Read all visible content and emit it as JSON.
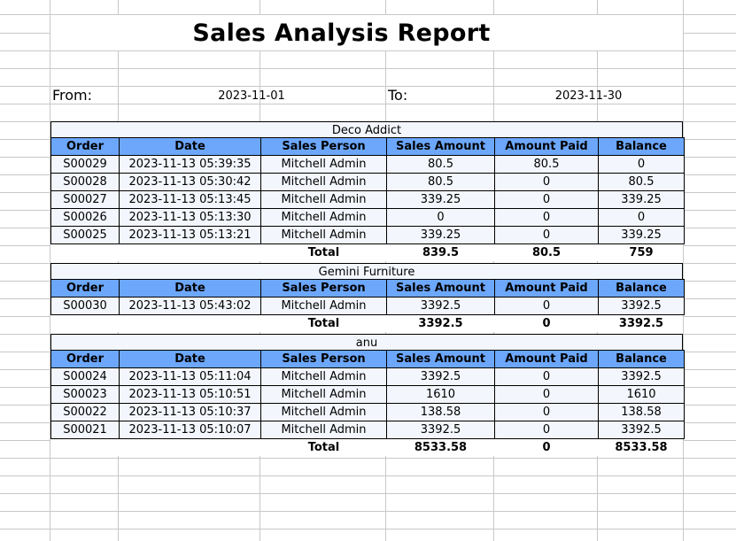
{
  "report": {
    "title": "Sales Analysis Report",
    "from_label": "From:",
    "from_value": "2023-11-01",
    "to_label": "To:",
    "to_value": "2023-11-30"
  },
  "headers": [
    "Order",
    "Date",
    "Sales Person",
    "Sales Amount",
    "Amount Paid",
    "Balance"
  ],
  "total_label": "Total",
  "groups": [
    {
      "name": "Deco Addict",
      "rows": [
        [
          "S00029",
          "2023-11-13 05:39:35",
          "Mitchell Admin",
          "80.5",
          "80.5",
          "0"
        ],
        [
          "S00028",
          "2023-11-13 05:30:42",
          "Mitchell Admin",
          "80.5",
          "0",
          "80.5"
        ],
        [
          "S00027",
          "2023-11-13 05:13:45",
          "Mitchell Admin",
          "339.25",
          "0",
          "339.25"
        ],
        [
          "S00026",
          "2023-11-13 05:13:30",
          "Mitchell Admin",
          "0",
          "0",
          "0"
        ],
        [
          "S00025",
          "2023-11-13 05:13:21",
          "Mitchell Admin",
          "339.25",
          "0",
          "339.25"
        ]
      ],
      "totals": [
        "839.5",
        "80.5",
        "759"
      ]
    },
    {
      "name": "Gemini Furniture",
      "rows": [
        [
          "S00030",
          "2023-11-13 05:43:02",
          "Mitchell Admin",
          "3392.5",
          "0",
          "3392.5"
        ]
      ],
      "totals": [
        "3392.5",
        "0",
        "3392.5"
      ]
    },
    {
      "name": "anu",
      "rows": [
        [
          "S00024",
          "2023-11-13 05:11:04",
          "Mitchell Admin",
          "3392.5",
          "0",
          "3392.5"
        ],
        [
          "S00023",
          "2023-11-13 05:10:51",
          "Mitchell Admin",
          "1610",
          "0",
          "1610"
        ],
        [
          "S00022",
          "2023-11-13 05:10:37",
          "Mitchell Admin",
          "138.58",
          "0",
          "138.58"
        ],
        [
          "S00021",
          "2023-11-13 05:10:07",
          "Mitchell Admin",
          "3392.5",
          "0",
          "3392.5"
        ]
      ],
      "totals": [
        "8533.58",
        "0",
        "8533.58"
      ]
    }
  ]
}
